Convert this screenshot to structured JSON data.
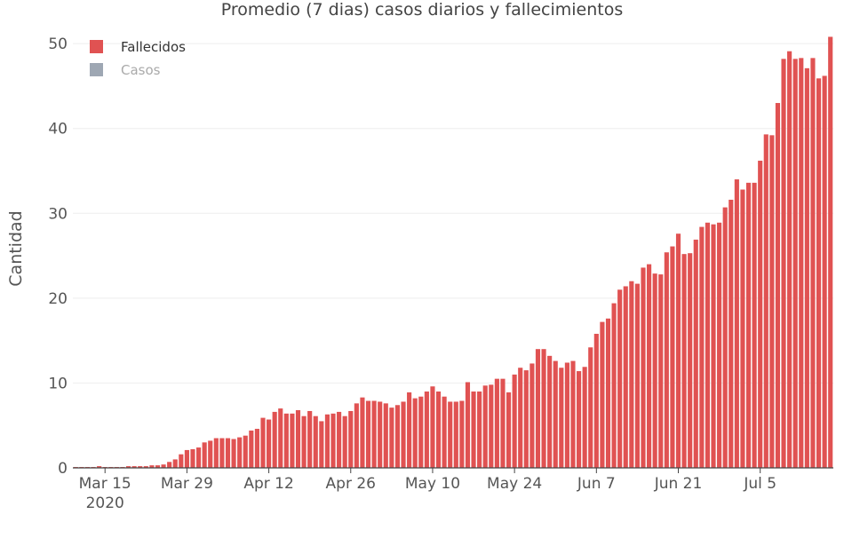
{
  "chart_data": {
    "type": "bar",
    "title": "Promedio (7 dias) casos diarios y fallecimientos",
    "ylabel": "Cantidad",
    "xlabel": "",
    "ylim": [
      0,
      52
    ],
    "yticks": [
      0,
      10,
      20,
      30,
      40,
      50
    ],
    "grid": true,
    "legend_position": "top-left",
    "start_date": "2020-03-10",
    "xticks": [
      {
        "date": "2020-03-15",
        "label": "Mar 15",
        "sublabel": "2020"
      },
      {
        "date": "2020-03-29",
        "label": "Mar 29"
      },
      {
        "date": "2020-04-12",
        "label": "Apr 12"
      },
      {
        "date": "2020-04-26",
        "label": "Apr 26"
      },
      {
        "date": "2020-05-10",
        "label": "May 10"
      },
      {
        "date": "2020-05-24",
        "label": "May 24"
      },
      {
        "date": "2020-06-07",
        "label": "Jun 7"
      },
      {
        "date": "2020-06-21",
        "label": "Jun 21"
      },
      {
        "date": "2020-07-05",
        "label": "Jul 5"
      }
    ],
    "series": [
      {
        "name": "Fallecidos",
        "color": "#e05252",
        "values": [
          0.1,
          0.1,
          0.1,
          0.1,
          0.2,
          0.1,
          0.1,
          0.1,
          0.1,
          0.2,
          0.2,
          0.2,
          0.2,
          0.3,
          0.3,
          0.4,
          0.7,
          1.0,
          1.6,
          2.1,
          2.2,
          2.4,
          3.0,
          3.2,
          3.5,
          3.5,
          3.5,
          3.4,
          3.6,
          3.8,
          4.4,
          4.6,
          5.9,
          5.7,
          6.6,
          7.0,
          6.4,
          6.4,
          6.8,
          6.1,
          6.7,
          6.1,
          5.5,
          6.3,
          6.4,
          6.6,
          6.1,
          6.7,
          7.6,
          8.3,
          7.9,
          7.9,
          7.8,
          7.6,
          7.1,
          7.4,
          7.8,
          8.9,
          8.2,
          8.4,
          9.0,
          9.6,
          9.0,
          8.4,
          7.8,
          7.8,
          7.9,
          10.1,
          9.0,
          9.0,
          9.7,
          9.8,
          10.5,
          10.5,
          8.9,
          11.0,
          11.8,
          11.5,
          12.3,
          14.0,
          14.0,
          13.2,
          12.6,
          11.8,
          12.4,
          12.6,
          11.4,
          11.9,
          14.2,
          15.8,
          17.2,
          17.6,
          19.4,
          21.0,
          21.4,
          22.0,
          21.7,
          23.6,
          24.0,
          22.9,
          22.8,
          25.4,
          26.1,
          27.6,
          25.2,
          25.3,
          26.9,
          28.4,
          28.9,
          28.7,
          28.9,
          30.7,
          31.6,
          34.0,
          32.8,
          33.6,
          33.6,
          36.2,
          39.3,
          39.2,
          43.0,
          48.2,
          49.1,
          48.2,
          48.3,
          47.1,
          48.3,
          45.9,
          46.2,
          50.8
        ]
      },
      {
        "name": "Casos",
        "color": "#9ea7b3",
        "values": []
      }
    ]
  }
}
